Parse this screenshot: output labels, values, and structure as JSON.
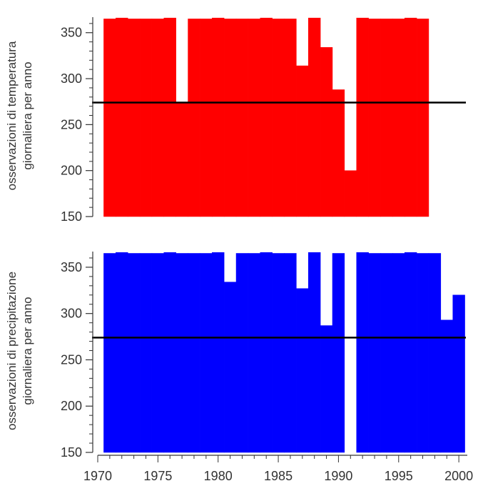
{
  "chart_data": [
    {
      "type": "bar",
      "title": "",
      "ylabel": "osservazioni di temperatura giornaliera per anno",
      "ylabel_lines": [
        "osservazioni di temperatura",
        "giornaliera per anno"
      ],
      "xlabel": "",
      "color": "#ff0000",
      "ylim": [
        150,
        370
      ],
      "yticks": [
        150,
        200,
        250,
        300,
        350
      ],
      "threshold": 274,
      "x": [
        1971,
        1972,
        1973,
        1974,
        1975,
        1976,
        1977,
        1978,
        1979,
        1980,
        1981,
        1982,
        1983,
        1984,
        1985,
        1986,
        1987,
        1988,
        1989,
        1990,
        1991,
        1992,
        1993,
        1994,
        1995,
        1996,
        1997
      ],
      "values": [
        365,
        366,
        365,
        365,
        365,
        366,
        274,
        365,
        365,
        366,
        365,
        365,
        365,
        366,
        365,
        365,
        314,
        366,
        334,
        288,
        200,
        366,
        365,
        365,
        365,
        366,
        365
      ]
    },
    {
      "type": "bar",
      "title": "",
      "ylabel": "osservazioni di precipitazione giornaliera per anno",
      "ylabel_lines": [
        "osservazioni di precipitazione",
        "giornaliera per anno"
      ],
      "xlabel": "",
      "color": "#0000ff",
      "ylim": [
        150,
        370
      ],
      "yticks": [
        150,
        200,
        250,
        300,
        350
      ],
      "threshold": 274,
      "x": [
        1971,
        1972,
        1973,
        1974,
        1975,
        1976,
        1977,
        1978,
        1979,
        1980,
        1981,
        1982,
        1983,
        1984,
        1985,
        1986,
        1987,
        1988,
        1989,
        1990,
        1992,
        1993,
        1994,
        1995,
        1996,
        1997,
        1998,
        1999,
        2000
      ],
      "values": [
        365,
        366,
        365,
        365,
        365,
        366,
        365,
        365,
        365,
        366,
        334,
        365,
        365,
        366,
        365,
        365,
        327,
        366,
        287,
        365,
        366,
        365,
        365,
        365,
        366,
        365,
        365,
        293,
        320
      ]
    }
  ],
  "xaxis": {
    "xlim": [
      1970,
      2001
    ],
    "ticks": [
      1970,
      1975,
      1980,
      1985,
      1990,
      1995,
      2000
    ]
  },
  "threshold_color": "#000000"
}
